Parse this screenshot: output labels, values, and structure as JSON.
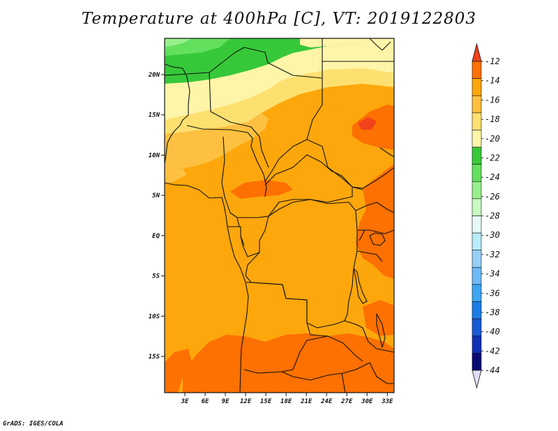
{
  "title": "Temperature at 400hPa [C], VT: 2019122803",
  "credit": "GrADS: IGES/COLA",
  "chart_data": {
    "type": "heatmap",
    "variable": "Temperature at 400hPa",
    "unit": "C",
    "valid_time": "2019122803",
    "xlim": [
      0,
      34
    ],
    "ylim": [
      -19.5,
      24.5
    ],
    "x_ticks": [
      {
        "value": 3,
        "label": "3E"
      },
      {
        "value": 6,
        "label": "6E"
      },
      {
        "value": 9,
        "label": "9E"
      },
      {
        "value": 12,
        "label": "12E"
      },
      {
        "value": 15,
        "label": "15E"
      },
      {
        "value": 18,
        "label": "18E"
      },
      {
        "value": 21,
        "label": "21E"
      },
      {
        "value": 24,
        "label": "24E"
      },
      {
        "value": 27,
        "label": "27E"
      },
      {
        "value": 30,
        "label": "30E"
      },
      {
        "value": 33,
        "label": "33E"
      }
    ],
    "y_ticks": [
      {
        "value": 20,
        "label": "20N"
      },
      {
        "value": 15,
        "label": "15N"
      },
      {
        "value": 10,
        "label": "10N"
      },
      {
        "value": 5,
        "label": "5N"
      },
      {
        "value": 0,
        "label": "EQ"
      },
      {
        "value": -5,
        "label": "5S"
      },
      {
        "value": -10,
        "label": "10S"
      },
      {
        "value": -15,
        "label": "15S"
      }
    ],
    "colorbar": {
      "labels": [
        "-12",
        "-14",
        "-16",
        "-18",
        "-20",
        "-22",
        "-24",
        "-26",
        "-28",
        "-30",
        "-32",
        "-34",
        "-36",
        "-38",
        "-40",
        "-42",
        "-44"
      ],
      "colors": [
        "#f3411b",
        "#fd7002",
        "#fda70c",
        "#fdc040",
        "#fee070",
        "#fff5a8",
        "#37c839",
        "#63e05e",
        "#98f08c",
        "#c8f9c0",
        "#e6f9f6",
        "#b9ecfb",
        "#96d0f6",
        "#6db9f6",
        "#3ca5f2",
        "#1a7ce6",
        "#1759d3",
        "#0f2fb6",
        "#0a0a76",
        "#e0e0f8"
      ]
    },
    "regions": [
      {
        "level": "-23 to -22",
        "color": "#37c839",
        "area": "northern Sahara, 20N–24N"
      },
      {
        "level": "-24 to -26",
        "color": "#63e05e",
        "area": "far northwest corner"
      },
      {
        "level": "-21 to -20",
        "color": "#fff5a8",
        "area": "Sahara band 17N–22N"
      },
      {
        "level": "-19 to -18",
        "color": "#fee070",
        "area": "Sahel 13N–17N"
      },
      {
        "level": "-17 to -16",
        "color": "#fdc040",
        "area": "West Africa 8N–13N"
      },
      {
        "level": "-15 to -14",
        "color": "#fda70c",
        "area": "Central Africa, Congo basin, Angola"
      },
      {
        "level": "-13 to -12",
        "color": "#fd7002",
        "area": "East Sudan, Ethiopia, East Africa, southern Angola/Zambia/Mozambique"
      }
    ]
  }
}
